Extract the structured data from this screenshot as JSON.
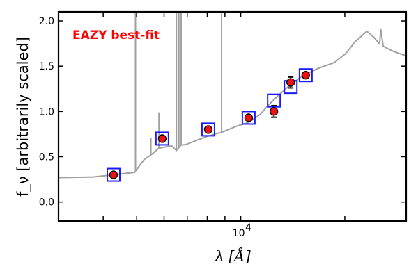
{
  "chart_data": {
    "type": "scatter",
    "title": "",
    "annotation": "EAZY best-fit",
    "xlabel": "λ [Å]",
    "ylabel": "f_ν [arbitrarily scaled]",
    "xscale": "log",
    "xlim": [
      2970,
      30100
    ],
    "ylim": [
      -0.21,
      2.1
    ],
    "yticks": [
      0.0,
      0.5,
      1.0,
      1.5,
      2.0
    ],
    "ytick_labels": [
      "0.0",
      "0.5",
      "1.0",
      "1.5",
      "2.0"
    ],
    "xtick_major": [
      10000
    ],
    "xtick_major_labels": [
      "10",
      "4"
    ],
    "xtick_minor": [
      4000,
      5000,
      6000,
      7000,
      8000,
      9000,
      20000
    ],
    "colors": {
      "model": "#a0a0a0",
      "observed": "#ee1111",
      "synthetic": "#1a1aff",
      "annotation": "#ff0000"
    },
    "model_spectrum": {
      "wavelength": [
        2980,
        3730,
        4930,
        5010,
        5250,
        5495,
        5800,
        6310,
        6515,
        6720,
        6930,
        7965,
        8870,
        9740,
        10520,
        11370,
        12100,
        12870,
        13680,
        15020,
        16750,
        18660,
        20150,
        21430,
        23160,
        24260,
        25220,
        25410,
        25820,
        27470,
        29920
      ],
      "flux": [
        0.27,
        0.276,
        0.327,
        0.365,
        0.467,
        0.519,
        0.595,
        0.62,
        0.57,
        0.628,
        0.634,
        0.723,
        0.774,
        0.838,
        0.876,
        0.966,
        1.08,
        1.18,
        1.27,
        1.387,
        1.476,
        1.54,
        1.642,
        1.77,
        1.885,
        1.82,
        1.745,
        1.91,
        1.72,
        1.668,
        1.617
      ]
    },
    "emission_lines": [
      {
        "wavelength": 4960,
        "peak": 2.5
      },
      {
        "wavelength": 5495,
        "peak": 0.71
      },
      {
        "wavelength": 5800,
        "peak": 0.99
      },
      {
        "wavelength": 6515,
        "peak": 2.5
      },
      {
        "wavelength": 6620,
        "peak": 2.5
      },
      {
        "wavelength": 6720,
        "peak": 2.5
      },
      {
        "wavelength": 8800,
        "peak": 2.5
      }
    ],
    "observed": {
      "wavelength": [
        4285,
        5926,
        8053,
        10539,
        12473,
        13944,
        15418
      ],
      "flux": [
        0.3,
        0.7,
        0.8,
        0.93,
        1.0,
        1.32,
        1.4
      ],
      "error": [
        0.01,
        0.01,
        0.01,
        0.01,
        0.064,
        0.06,
        0.01
      ]
    },
    "synthetic": {
      "wavelength": [
        4285,
        5926,
        8053,
        10539,
        12473,
        13944,
        15418
      ],
      "flux": [
        0.3,
        0.7,
        0.8,
        0.93,
        1.12,
        1.27,
        1.4
      ]
    }
  }
}
